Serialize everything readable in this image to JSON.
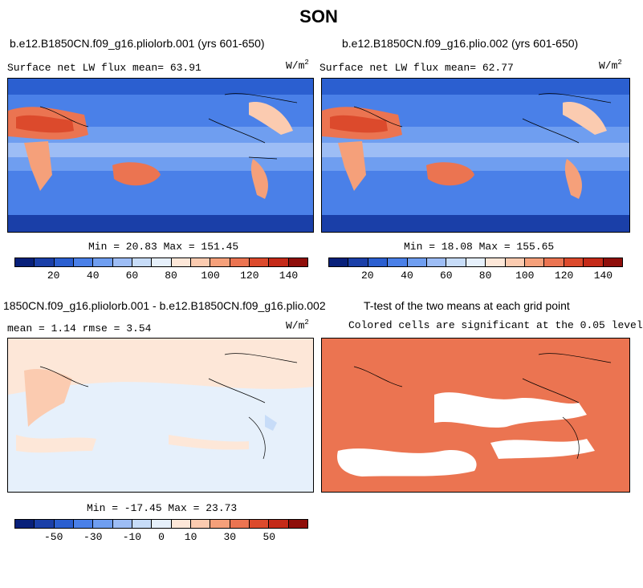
{
  "main_title": "SON",
  "panels": {
    "p1": {
      "title": "b.e12.B1850CN.f09_g16.pliolorb.001 (yrs 601-650)",
      "subtitle": "Surface net LW flux mean=  63.91",
      "unit": "W/m",
      "unit_exp": "2",
      "minmax": "Min =  20.83 Max = 151.45"
    },
    "p2": {
      "title": "b.e12.B1850CN.f09_g16.plio.002 (yrs 601-650)",
      "subtitle": "Surface net LW flux mean=  62.77",
      "unit": "W/m",
      "unit_exp": "2",
      "minmax": "Min =  18.08 Max = 155.65"
    },
    "p3": {
      "title": "1850CN.f09_g16.pliolorb.001 - b.e12.B1850CN.f09_g16.plio.002",
      "subtitle": "mean =   1.14    rmse =   3.54",
      "unit": "W/m",
      "unit_exp": "2",
      "minmax": "Min = -17.45 Max =  23.73"
    },
    "p4": {
      "title": "T-test of the two means at each grid point",
      "subtitle": "Colored cells are significant at the 0.05 level"
    }
  },
  "colorbar_abs": {
    "colors": [
      "#08207a",
      "#1a3fa8",
      "#2b5fd0",
      "#4a80e8",
      "#6f9ef0",
      "#9dbdf5",
      "#c7dcf8",
      "#e6f0fb",
      "#fde7d8",
      "#fbcbb0",
      "#f5a07a",
      "#eb7451",
      "#dc4a2c",
      "#c42a18",
      "#8f0e0a"
    ],
    "tick_labels": [
      "20",
      "40",
      "60",
      "80",
      "100",
      "120",
      "140"
    ]
  },
  "colorbar_diff": {
    "colors": [
      "#08207a",
      "#1a3fa8",
      "#2b5fd0",
      "#4a80e8",
      "#6f9ef0",
      "#9dbdf5",
      "#c7dcf8",
      "#e6f0fb",
      "#fde7d8",
      "#fbcbb0",
      "#f5a07a",
      "#eb7451",
      "#dc4a2c",
      "#c42a18",
      "#8f0e0a"
    ],
    "tick_labels": [
      "-50",
      "-30",
      "-10",
      "0",
      "10",
      "30",
      "50"
    ]
  }
}
